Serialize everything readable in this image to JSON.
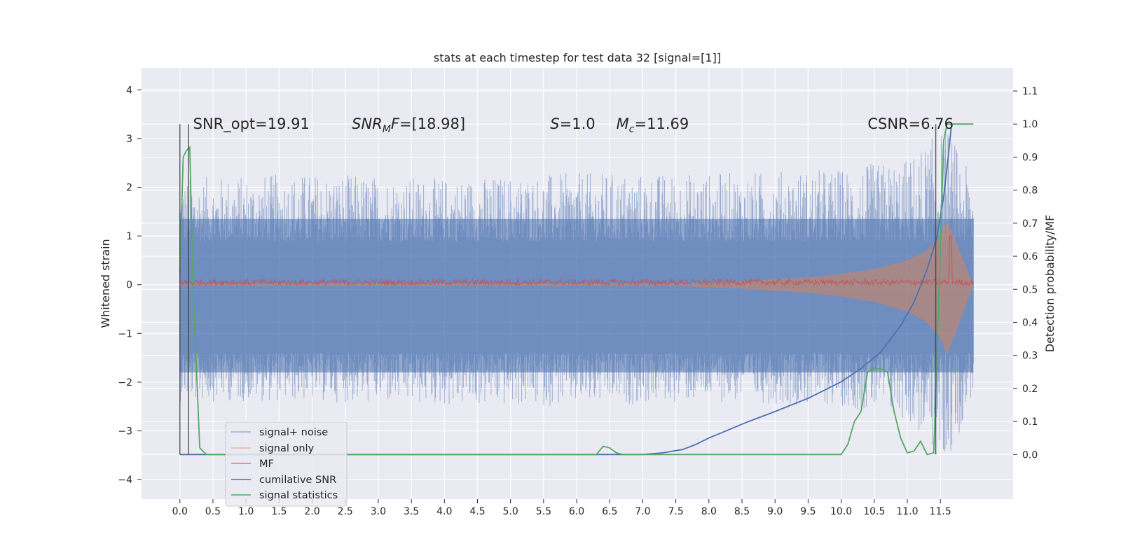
{
  "chart_data": {
    "type": "line",
    "title": "stats at each timestep for test data 32 [signal=[1]]",
    "xlabel": "",
    "ylabel": "Whitened strain",
    "y2label": "Detection probability/MF",
    "xlim": [
      -0.58,
      12.6
    ],
    "ylim": [
      -4.4,
      4.45
    ],
    "y2lim": [
      -0.135,
      1.17
    ],
    "x_ticks": [
      0.0,
      0.5,
      1.0,
      1.5,
      2.0,
      2.5,
      3.0,
      3.5,
      4.0,
      4.5,
      5.0,
      5.5,
      6.0,
      6.5,
      7.0,
      7.5,
      8.0,
      8.5,
      9.0,
      9.5,
      10.0,
      10.5,
      11.0,
      11.5
    ],
    "x_tick_labels": [
      "0.0",
      "0.5",
      "1.0",
      "1.5",
      "2.0",
      "2.5",
      "3.0",
      "3.5",
      "4.0",
      "4.5",
      "5.0",
      "5.5",
      "6.0",
      "6.5",
      "7.0",
      "7.5",
      "8.0",
      "8.5",
      "9.0",
      "9.5",
      "10.0",
      "10.5",
      "11.0",
      "11.5"
    ],
    "y_ticks": [
      -4,
      -3,
      -2,
      -1,
      0,
      1,
      2,
      3,
      4
    ],
    "y_tick_labels": [
      "−4",
      "−3",
      "−2",
      "−1",
      "0",
      "1",
      "2",
      "3",
      "4"
    ],
    "y2_ticks": [
      0.0,
      0.1,
      0.2,
      0.3,
      0.4,
      0.5,
      0.6,
      0.7,
      0.8,
      0.9,
      1.0,
      1.1
    ],
    "y2_tick_labels": [
      "0.0",
      "0.1",
      "0.2",
      "0.3",
      "0.4",
      "0.5",
      "0.6",
      "0.7",
      "0.8",
      "0.9",
      "1.0",
      "1.1"
    ],
    "grid": true,
    "legend_position": "lower-left",
    "annotations": [
      {
        "id": "snr-opt",
        "text": "SNR_opt=19.91",
        "x": 0.2,
        "y": 3.2
      },
      {
        "id": "snr-mf",
        "text": "SNRₘF=[18.98]",
        "x": 2.6,
        "y": 3.2
      },
      {
        "id": "s-val",
        "text": "S=1.0",
        "x": 5.6,
        "y": 3.2
      },
      {
        "id": "mc-val",
        "text": "Mc=11.69",
        "x": 6.6,
        "y": 3.2
      },
      {
        "id": "csnr",
        "text": "CSNR=6.76",
        "x": 10.4,
        "y": 3.2
      }
    ],
    "vertical_lines": [
      0.0,
      0.13,
      11.43
    ],
    "series": [
      {
        "name": "signal+ noise",
        "color": "#4c72b0",
        "alpha": 0.5,
        "axis": "left",
        "envelope_x": [
          0,
          2,
          4,
          6,
          8,
          10,
          11,
          11.6,
          12
        ],
        "envelope_hi": [
          2.2,
          2.3,
          2.2,
          2.3,
          2.3,
          2.4,
          2.6,
          3.3,
          2.1
        ],
        "envelope_lo": [
          -2.4,
          -2.4,
          -2.5,
          -2.5,
          -2.4,
          -2.5,
          -2.8,
          -3.8,
          -2.2
        ]
      },
      {
        "name": "signal only",
        "color": "#dd8452",
        "alpha": 0.5,
        "axis": "left",
        "x": [
          0,
          7.5,
          8.5,
          9.5,
          10.0,
          10.5,
          11.0,
          11.3,
          11.5,
          11.6,
          11.7,
          12.0
        ],
        "amplitude": [
          0.02,
          0.02,
          0.07,
          0.15,
          0.22,
          0.32,
          0.5,
          0.7,
          1.0,
          1.3,
          1.0,
          0.0
        ]
      },
      {
        "name": "MF",
        "color": "#c44e52",
        "alpha": 0.7,
        "axis": "left",
        "x": [
          0,
          12
        ],
        "level": 0.05,
        "spike_x": 11.65,
        "spike_y": 1.0
      },
      {
        "name": "cumilative SNR",
        "color": "#4c72b0",
        "axis": "right",
        "x": [
          0,
          7.0,
          7.3,
          7.6,
          7.8,
          8.0,
          8.3,
          8.6,
          9.0,
          9.5,
          10.0,
          10.3,
          10.6,
          10.9,
          11.1,
          11.3,
          11.45,
          11.55,
          11.63,
          11.67
        ],
        "values": [
          0,
          0,
          0.005,
          0.015,
          0.03,
          0.05,
          0.075,
          0.1,
          0.13,
          0.17,
          0.22,
          0.26,
          0.31,
          0.39,
          0.46,
          0.56,
          0.66,
          0.78,
          0.92,
          1.0
        ]
      },
      {
        "name": "signal statistics",
        "color": "#55a868",
        "axis": "right",
        "x": [
          0,
          0.05,
          0.1,
          0.15,
          0.2,
          0.3,
          0.4,
          6.3,
          6.4,
          6.5,
          6.6,
          6.7,
          7.8,
          10.0,
          10.1,
          10.2,
          10.3,
          10.4,
          10.5,
          10.6,
          10.7,
          10.8,
          10.9,
          11.0,
          11.1,
          11.2,
          11.3,
          11.4,
          11.45,
          11.55,
          11.6,
          11.65,
          11.75,
          12.0
        ],
        "values": [
          0.55,
          0.9,
          0.92,
          0.93,
          0.5,
          0.02,
          0.0,
          0.0,
          0.025,
          0.02,
          0.005,
          0.0,
          0.0,
          0.0,
          0.03,
          0.1,
          0.13,
          0.25,
          0.26,
          0.26,
          0.25,
          0.13,
          0.05,
          0.005,
          0.01,
          0.04,
          0.0,
          0.005,
          0.3,
          0.95,
          1.0,
          1.0,
          1.0,
          1.0
        ]
      }
    ]
  }
}
